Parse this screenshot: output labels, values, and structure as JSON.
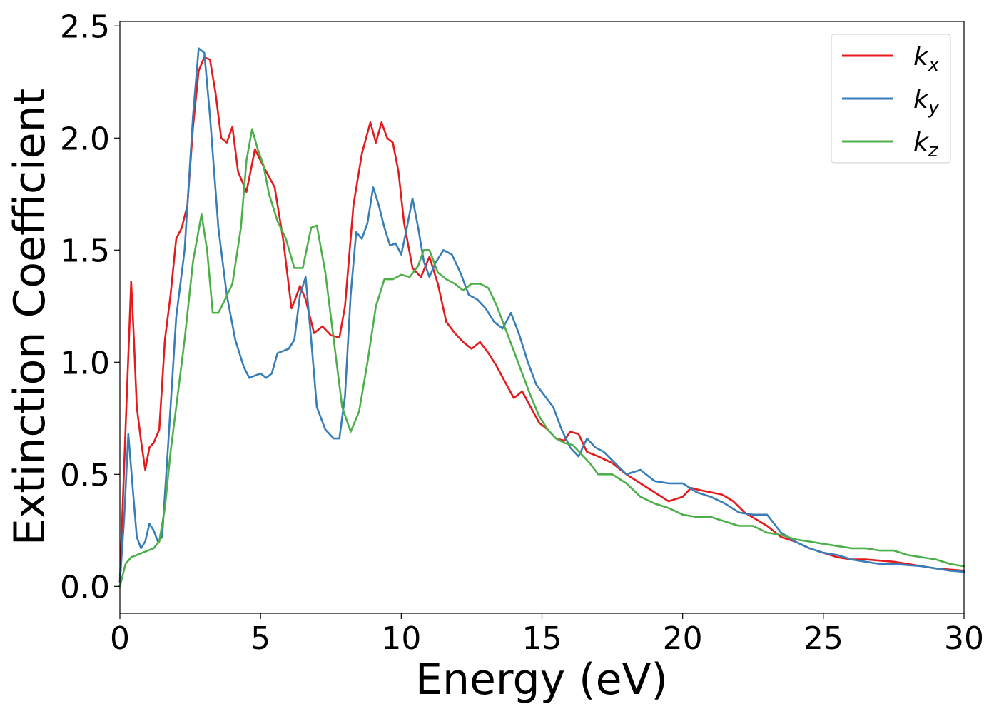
{
  "chart_data": {
    "type": "line",
    "xlabel": "Energy (eV)",
    "ylabel": "Extinction Coefficient",
    "xlim": [
      0,
      30
    ],
    "ylim": [
      -0.12,
      2.52
    ],
    "xticks": [
      0,
      5,
      10,
      15,
      20,
      25,
      30
    ],
    "yticks": [
      0.0,
      0.5,
      1.0,
      1.5,
      2.0,
      2.5
    ],
    "xtick_labels": [
      "0",
      "5",
      "10",
      "15",
      "20",
      "25",
      "30"
    ],
    "ytick_labels": [
      "0.0",
      "0.5",
      "1.0",
      "1.5",
      "2.0",
      "2.5"
    ],
    "grid": false,
    "legend_position": "top-right",
    "series": [
      {
        "name": "k_x",
        "label_main": "k",
        "label_sub": "x",
        "color": "#e41a1c",
        "x": [
          0,
          0.2,
          0.4,
          0.5,
          0.6,
          0.75,
          0.9,
          1.05,
          1.2,
          1.4,
          1.6,
          1.8,
          2.0,
          2.2,
          2.4,
          2.6,
          2.8,
          3.0,
          3.2,
          3.4,
          3.6,
          3.8,
          4.0,
          4.2,
          4.5,
          4.8,
          5.0,
          5.2,
          5.5,
          5.8,
          6.1,
          6.2,
          6.4,
          6.6,
          6.9,
          7.2,
          7.5,
          7.8,
          8.0,
          8.3,
          8.6,
          8.9,
          9.1,
          9.3,
          9.5,
          9.7,
          9.9,
          10.1,
          10.4,
          10.7,
          11.0,
          11.3,
          11.6,
          11.9,
          12.2,
          12.5,
          12.8,
          13.1,
          13.4,
          13.7,
          14.0,
          14.3,
          14.6,
          14.9,
          15.2,
          15.5,
          15.8,
          16.0,
          16.3,
          16.6,
          17.0,
          17.5,
          18.0,
          18.5,
          19.0,
          19.5,
          20.0,
          20.3,
          20.6,
          21.0,
          21.4,
          21.8,
          22.2,
          22.6,
          23.0,
          23.5,
          24.0,
          24.5,
          25.0,
          25.5,
          26.0,
          26.5,
          27.0,
          27.5,
          28.0,
          28.5,
          29.0,
          29.5,
          30.0
        ],
        "y": [
          0.02,
          0.7,
          1.36,
          1.1,
          0.8,
          0.65,
          0.52,
          0.62,
          0.64,
          0.7,
          1.1,
          1.3,
          1.55,
          1.6,
          1.7,
          2.05,
          2.3,
          2.36,
          2.35,
          2.2,
          2.0,
          1.98,
          2.05,
          1.85,
          1.76,
          1.95,
          1.9,
          1.85,
          1.78,
          1.55,
          1.24,
          1.27,
          1.34,
          1.28,
          1.13,
          1.16,
          1.12,
          1.11,
          1.25,
          1.7,
          1.93,
          2.07,
          1.98,
          2.07,
          2.0,
          1.98,
          1.85,
          1.62,
          1.42,
          1.38,
          1.47,
          1.35,
          1.18,
          1.13,
          1.09,
          1.06,
          1.09,
          1.04,
          0.98,
          0.91,
          0.84,
          0.87,
          0.8,
          0.73,
          0.7,
          0.66,
          0.65,
          0.69,
          0.68,
          0.6,
          0.58,
          0.55,
          0.5,
          0.46,
          0.42,
          0.38,
          0.4,
          0.44,
          0.43,
          0.42,
          0.41,
          0.38,
          0.33,
          0.3,
          0.27,
          0.22,
          0.2,
          0.17,
          0.15,
          0.13,
          0.12,
          0.12,
          0.115,
          0.11,
          0.1,
          0.09,
          0.08,
          0.075,
          0.07
        ]
      },
      {
        "name": "k_y",
        "label_main": "k",
        "label_sub": "y",
        "color": "#377eb8",
        "x": [
          0,
          0.15,
          0.3,
          0.45,
          0.6,
          0.75,
          0.9,
          1.05,
          1.2,
          1.35,
          1.5,
          1.7,
          2.0,
          2.3,
          2.6,
          2.8,
          3.0,
          3.2,
          3.5,
          3.8,
          4.1,
          4.4,
          4.6,
          4.8,
          5.0,
          5.2,
          5.4,
          5.6,
          5.8,
          6.0,
          6.2,
          6.4,
          6.6,
          6.8,
          7.0,
          7.3,
          7.6,
          7.8,
          8.0,
          8.2,
          8.4,
          8.6,
          8.8,
          9.0,
          9.2,
          9.4,
          9.6,
          9.8,
          10.0,
          10.2,
          10.4,
          10.6,
          10.8,
          11.0,
          11.2,
          11.5,
          11.8,
          12.1,
          12.4,
          12.7,
          13.0,
          13.3,
          13.6,
          13.9,
          14.2,
          14.5,
          14.8,
          15.1,
          15.4,
          15.7,
          16.0,
          16.3,
          16.6,
          16.9,
          17.2,
          17.6,
          18.0,
          18.5,
          19.0,
          19.5,
          20.0,
          20.5,
          21.0,
          21.5,
          22.0,
          22.5,
          23.0,
          23.5,
          24.0,
          24.5,
          25.0,
          25.5,
          26.0,
          26.5,
          27.0,
          27.5,
          28.0,
          28.5,
          29.0,
          29.5,
          30.0
        ],
        "y": [
          0.02,
          0.3,
          0.68,
          0.45,
          0.22,
          0.17,
          0.2,
          0.28,
          0.25,
          0.2,
          0.22,
          0.6,
          1.2,
          1.5,
          2.1,
          2.4,
          2.38,
          2.1,
          1.6,
          1.3,
          1.1,
          0.98,
          0.93,
          0.94,
          0.95,
          0.93,
          0.95,
          1.04,
          1.05,
          1.06,
          1.1,
          1.3,
          1.38,
          1.1,
          0.8,
          0.7,
          0.66,
          0.66,
          0.85,
          1.3,
          1.58,
          1.55,
          1.62,
          1.78,
          1.7,
          1.6,
          1.52,
          1.53,
          1.48,
          1.6,
          1.73,
          1.6,
          1.45,
          1.38,
          1.44,
          1.5,
          1.48,
          1.4,
          1.3,
          1.28,
          1.24,
          1.18,
          1.15,
          1.22,
          1.12,
          1.0,
          0.9,
          0.85,
          0.8,
          0.7,
          0.62,
          0.58,
          0.66,
          0.62,
          0.6,
          0.55,
          0.5,
          0.52,
          0.47,
          0.46,
          0.46,
          0.42,
          0.4,
          0.37,
          0.33,
          0.32,
          0.32,
          0.24,
          0.2,
          0.17,
          0.15,
          0.14,
          0.12,
          0.11,
          0.1,
          0.1,
          0.095,
          0.09,
          0.08,
          0.07,
          0.065
        ]
      },
      {
        "name": "k_z",
        "label_main": "k",
        "label_sub": "z",
        "color": "#4daf4a",
        "x": [
          0,
          0.2,
          0.4,
          0.6,
          0.8,
          1.0,
          1.2,
          1.4,
          1.6,
          1.8,
          2.0,
          2.3,
          2.6,
          2.9,
          3.1,
          3.3,
          3.5,
          3.7,
          4.0,
          4.3,
          4.5,
          4.7,
          4.9,
          5.1,
          5.3,
          5.6,
          5.9,
          6.2,
          6.5,
          6.8,
          7.0,
          7.3,
          7.6,
          7.9,
          8.2,
          8.5,
          8.8,
          9.1,
          9.4,
          9.7,
          10.0,
          10.3,
          10.6,
          10.8,
          11.0,
          11.3,
          11.6,
          11.9,
          12.2,
          12.5,
          12.8,
          13.1,
          13.4,
          13.7,
          14.0,
          14.3,
          14.6,
          14.9,
          15.2,
          15.5,
          15.8,
          16.1,
          16.4,
          16.7,
          17.0,
          17.5,
          18.0,
          18.5,
          19.0,
          19.5,
          20.0,
          20.5,
          21.0,
          21.5,
          22.0,
          22.5,
          23.0,
          23.5,
          24.0,
          24.5,
          25.0,
          25.5,
          26.0,
          26.5,
          27.0,
          27.5,
          28.0,
          28.5,
          29.0,
          29.5,
          30.0
        ],
        "y": [
          0.0,
          0.1,
          0.13,
          0.14,
          0.15,
          0.16,
          0.17,
          0.2,
          0.35,
          0.6,
          0.8,
          1.1,
          1.45,
          1.66,
          1.5,
          1.22,
          1.22,
          1.27,
          1.35,
          1.6,
          1.9,
          2.04,
          1.95,
          1.88,
          1.75,
          1.63,
          1.55,
          1.42,
          1.42,
          1.6,
          1.61,
          1.4,
          1.1,
          0.8,
          0.69,
          0.78,
          1.0,
          1.25,
          1.37,
          1.37,
          1.39,
          1.38,
          1.43,
          1.5,
          1.5,
          1.4,
          1.37,
          1.35,
          1.32,
          1.35,
          1.35,
          1.33,
          1.25,
          1.15,
          1.05,
          0.95,
          0.85,
          0.76,
          0.7,
          0.66,
          0.64,
          0.63,
          0.59,
          0.55,
          0.5,
          0.5,
          0.46,
          0.4,
          0.37,
          0.35,
          0.32,
          0.31,
          0.31,
          0.29,
          0.27,
          0.27,
          0.24,
          0.23,
          0.21,
          0.2,
          0.19,
          0.18,
          0.17,
          0.17,
          0.16,
          0.16,
          0.14,
          0.13,
          0.12,
          0.1,
          0.09
        ]
      }
    ]
  }
}
